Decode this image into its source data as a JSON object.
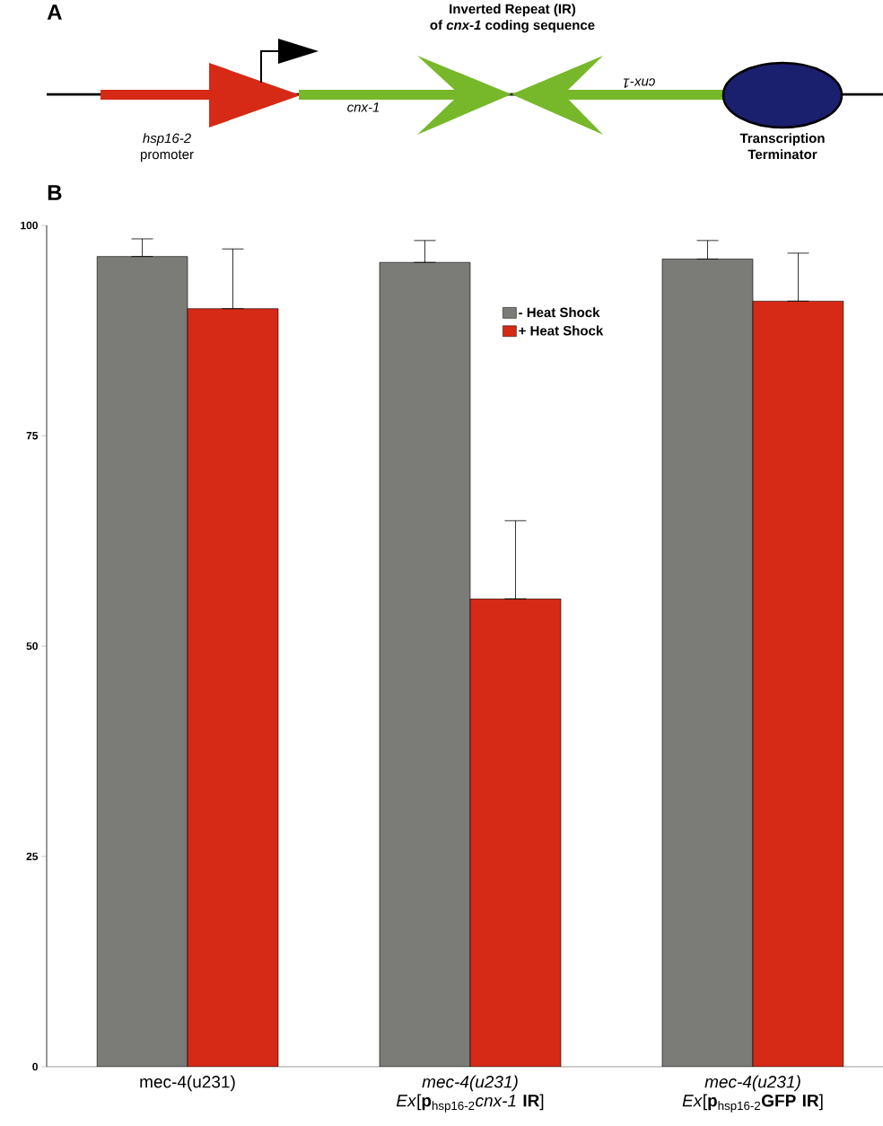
{
  "chart_data": [
    {
      "type": "other",
      "annotations": [
        "A",
        "Inverted Repeat (IR)",
        "of *cnx-1* coding sequence",
        "*cnx-1*",
        "*cnx-1*",
        "*hsp16-2* promoter",
        "Transcription Terminator"
      ]
    },
    {
      "type": "bar",
      "annotations": [
        "B"
      ],
      "categories": [
        "mec-4(u231)",
        "*mec-4(u231) Ex*[**p**$_{hsp16-2}$*cnx-1* **IR**]",
        "*mec-4(u231) Ex*[**p**$_{hsp16-2}$**GFP IR**]"
      ],
      "series": [
        {
          "name": "- Heat Shock",
          "color": "#7b7b78",
          "values": [
            96.3,
            95.6,
            96.0
          ],
          "errors": [
            [
              96.3,
              98.4
            ],
            [
              95.6,
              98.2
            ],
            [
              96.0,
              98.2
            ]
          ]
        },
        {
          "name": "+ Heat Shock",
          "color": "#d62a16",
          "values": [
            90.1,
            55.6,
            91.0
          ],
          "errors": [
            [
              90.1,
              97.2
            ],
            [
              55.6,
              64.9
            ],
            [
              91.0,
              96.7
            ]
          ]
        }
      ],
      "ylim": [
        0,
        100
      ],
      "yticks": [
        0,
        25,
        50,
        75,
        100
      ],
      "grid": false,
      "legend": "top right"
    }
  ]
}
